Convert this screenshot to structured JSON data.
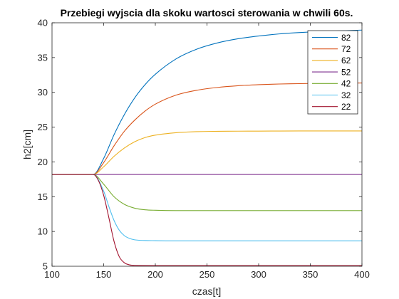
{
  "chart_data": {
    "type": "line",
    "title": "Przebiegi wyjscia dla skoku wartosci sterowania w chwili 60s.",
    "xlabel": "czas[t]",
    "ylabel": "h2[cm]",
    "xlim": [
      100,
      400
    ],
    "ylim": [
      5,
      40
    ],
    "xticks": [
      100,
      150,
      200,
      250,
      300,
      350,
      400
    ],
    "yticks": [
      5,
      10,
      15,
      20,
      25,
      30,
      35,
      40
    ],
    "grid": false,
    "legend_position": "top-right",
    "series": [
      {
        "name": "82",
        "color": "#0072BD",
        "x": [
          100,
          140,
          150,
          160,
          170,
          180,
          190,
          200,
          220,
          240,
          260,
          280,
          300,
          320,
          340,
          360,
          380,
          400
        ],
        "y": [
          18.2,
          18.2,
          20.5,
          23.9,
          26.8,
          29.2,
          31.1,
          32.6,
          34.8,
          36.2,
          37.1,
          37.7,
          38.1,
          38.4,
          38.6,
          38.75,
          38.85,
          38.95
        ]
      },
      {
        "name": "72",
        "color": "#D95319",
        "x": [
          100,
          140,
          150,
          160,
          170,
          180,
          190,
          200,
          220,
          240,
          260,
          280,
          300,
          320,
          340,
          360,
          380,
          400
        ],
        "y": [
          18.2,
          18.2,
          19.9,
          22.3,
          24.4,
          26.0,
          27.3,
          28.3,
          29.6,
          30.3,
          30.7,
          30.95,
          31.1,
          31.2,
          31.25,
          31.3,
          31.32,
          31.35
        ]
      },
      {
        "name": "62",
        "color": "#EDB120",
        "x": [
          100,
          140,
          150,
          160,
          170,
          180,
          190,
          200,
          220,
          240,
          260,
          280,
          300,
          340,
          400
        ],
        "y": [
          18.2,
          18.2,
          19.3,
          20.8,
          22.0,
          22.9,
          23.5,
          23.85,
          24.2,
          24.35,
          24.4,
          24.42,
          24.43,
          24.45,
          24.45
        ]
      },
      {
        "name": "52",
        "color": "#7E2F8E",
        "x": [
          100,
          400
        ],
        "y": [
          18.2,
          18.2
        ]
      },
      {
        "name": "42",
        "color": "#77AC30",
        "x": [
          100,
          140,
          150,
          160,
          170,
          180,
          190,
          200,
          220,
          260,
          400
        ],
        "y": [
          18.2,
          18.2,
          16.8,
          15.0,
          13.9,
          13.35,
          13.12,
          13.05,
          13.0,
          13.0,
          13.0
        ]
      },
      {
        "name": "32",
        "color": "#4DBEEE",
        "x": [
          100,
          140,
          150,
          155,
          160,
          165,
          170,
          175,
          180,
          190,
          200,
          220,
          260,
          400
        ],
        "y": [
          18.2,
          18.2,
          15.8,
          13.6,
          11.6,
          10.2,
          9.4,
          9.0,
          8.8,
          8.7,
          8.68,
          8.65,
          8.65,
          8.65
        ]
      },
      {
        "name": "22",
        "color": "#A2142F",
        "x": [
          100,
          140,
          145,
          150,
          155,
          160,
          165,
          170,
          175,
          180,
          200,
          400
        ],
        "y": [
          18.2,
          18.2,
          17.3,
          15.2,
          12.0,
          8.6,
          6.4,
          5.5,
          5.2,
          5.12,
          5.1,
          5.1
        ]
      }
    ]
  }
}
